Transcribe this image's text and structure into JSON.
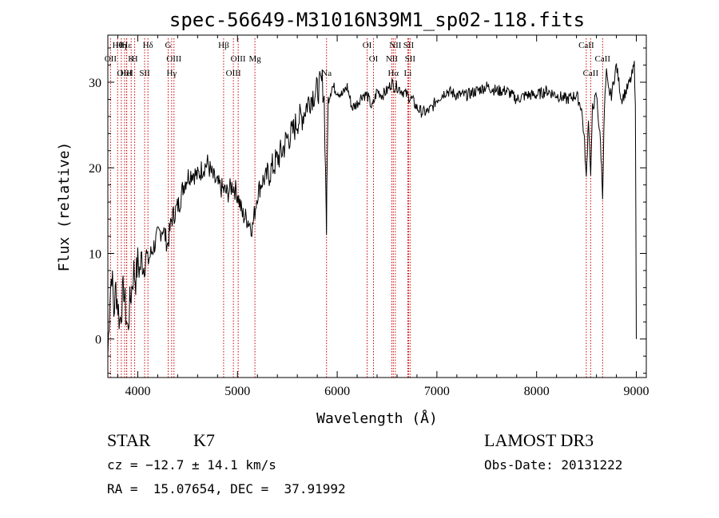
{
  "chart_data": {
    "type": "line",
    "title": "spec-56649-M31016N39M1_sp02-118.fits",
    "xlabel": "Wavelength (Å)",
    "ylabel": "Flux (relative)",
    "xlim": [
      3700,
      9100
    ],
    "ylim": [
      -4.5,
      35.5
    ],
    "xticks": [
      4000,
      5000,
      6000,
      7000,
      8000,
      9000
    ],
    "yticks": [
      0,
      10,
      20,
      30
    ],
    "grid": false,
    "line_color": "#000000",
    "marker_color": "#cc0000",
    "series": [
      {
        "x": [
          3700,
          3720,
          3740,
          3760,
          3780,
          3800,
          3820,
          3840,
          3860,
          3880,
          3900,
          3920,
          3940,
          3960,
          3980,
          4000,
          4020,
          4040,
          4060,
          4080,
          4100,
          4150,
          4200,
          4250,
          4300,
          4340,
          4380,
          4420,
          4460,
          4500,
          4550,
          4600,
          4650,
          4700,
          4750,
          4800,
          4850,
          4900,
          4950,
          5000,
          5050,
          5100,
          5150,
          5200,
          5250,
          5300,
          5350,
          5400,
          5450,
          5500,
          5550,
          5600,
          5650,
          5700,
          5750,
          5800,
          5850,
          5870,
          5890,
          5893,
          5896,
          5910,
          5950,
          6000,
          6050,
          6100,
          6150,
          6200,
          6250,
          6300,
          6350,
          6400,
          6450,
          6500,
          6550,
          6563,
          6600,
          6650,
          6700,
          6750,
          6800,
          6850,
          6900,
          6950,
          7000,
          7100,
          7200,
          7300,
          7400,
          7500,
          7600,
          7700,
          7800,
          7900,
          8000,
          8100,
          8200,
          8300,
          8400,
          8450,
          8480,
          8498,
          8520,
          8542,
          8560,
          8600,
          8640,
          8662,
          8680,
          8700,
          8720,
          8750,
          8800,
          8850,
          8900,
          8950,
          8980,
          8990,
          9000
        ],
        "values": [
          -2.0,
          5.0,
          8.0,
          3.0,
          6.0,
          4.0,
          2.0,
          4.0,
          6.0,
          3.0,
          1.0,
          4.0,
          6.0,
          8.0,
          7.0,
          9.0,
          8.0,
          9.5,
          8.5,
          10.0,
          9.0,
          10.5,
          12.0,
          13.0,
          11.0,
          14.0,
          15.0,
          16.0,
          18.0,
          19.0,
          19.5,
          19.0,
          20.0,
          20.5,
          19.0,
          18.0,
          17.5,
          17.0,
          18.0,
          17.0,
          14.5,
          14.0,
          13.0,
          17.0,
          18.5,
          19.0,
          20.0,
          21.0,
          22.0,
          23.5,
          24.0,
          25.5,
          26.0,
          27.5,
          28.5,
          29.0,
          30.0,
          28.0,
          15.0,
          12.0,
          18.0,
          28.0,
          29.5,
          29.0,
          28.5,
          29.5,
          27.0,
          27.5,
          28.5,
          28.5,
          27.0,
          29.0,
          28.5,
          29.0,
          30.0,
          29.5,
          29.5,
          29.0,
          28.5,
          28.0,
          27.0,
          26.5,
          26.5,
          27.0,
          28.0,
          29.0,
          28.5,
          28.5,
          29.0,
          29.5,
          29.0,
          29.0,
          28.0,
          28.5,
          28.5,
          29.0,
          28.5,
          28.0,
          28.5,
          27.0,
          23.0,
          18.5,
          26.0,
          19.0,
          27.0,
          28.5,
          23.0,
          17.0,
          27.0,
          31.0,
          29.0,
          28.5,
          32.0,
          28.0,
          29.0,
          30.5,
          32.0,
          28.0,
          0.0
        ]
      }
    ],
    "lines": [
      {
        "label": "Hθ",
        "x": 3798
      },
      {
        "label": "OII",
        "x": 3727
      },
      {
        "label": "OIII",
        "x": 3868
      },
      {
        "label": "Hε",
        "x": 3889
      },
      {
        "label": "K",
        "x": 3934
      },
      {
        "label": "HeI",
        "x": 3889
      },
      {
        "label": "Hη",
        "x": 3835
      },
      {
        "label": "H",
        "x": 3969
      },
      {
        "label": "SII",
        "x": 4069
      },
      {
        "label": "Hδ",
        "x": 4102
      },
      {
        "label": "OIII",
        "x": 4363
      },
      {
        "label": "Hγ",
        "x": 4340
      },
      {
        "label": "G",
        "x": 4305
      },
      {
        "label": "OIII",
        "x": 5007
      },
      {
        "label": "OIII",
        "x": 4959
      },
      {
        "label": "Hβ",
        "x": 4861
      },
      {
        "label": "Mg",
        "x": 5175
      },
      {
        "label": "Na",
        "x": 5893
      },
      {
        "label": "OI",
        "x": 6300
      },
      {
        "label": "OI",
        "x": 6364
      },
      {
        "label": "Hα",
        "x": 6563
      },
      {
        "label": "SII",
        "x": 6716
      },
      {
        "label": "NII",
        "x": 6548
      },
      {
        "label": "Li",
        "x": 6708
      },
      {
        "label": "NII",
        "x": 6583
      },
      {
        "label": "SII",
        "x": 6731
      },
      {
        "label": "CaII",
        "x": 8542
      },
      {
        "label": "CaII",
        "x": 8498
      },
      {
        "label": "CaII",
        "x": 8662
      }
    ]
  },
  "info": {
    "object_class": "STAR",
    "subclass": "K7",
    "survey": "LAMOST DR3",
    "redshift": "cz = −12.7 ± 14.1 km/s",
    "obs_date": "Obs-Date: 20131222",
    "coords": "RA =  15.07654, DEC =  37.91992"
  }
}
